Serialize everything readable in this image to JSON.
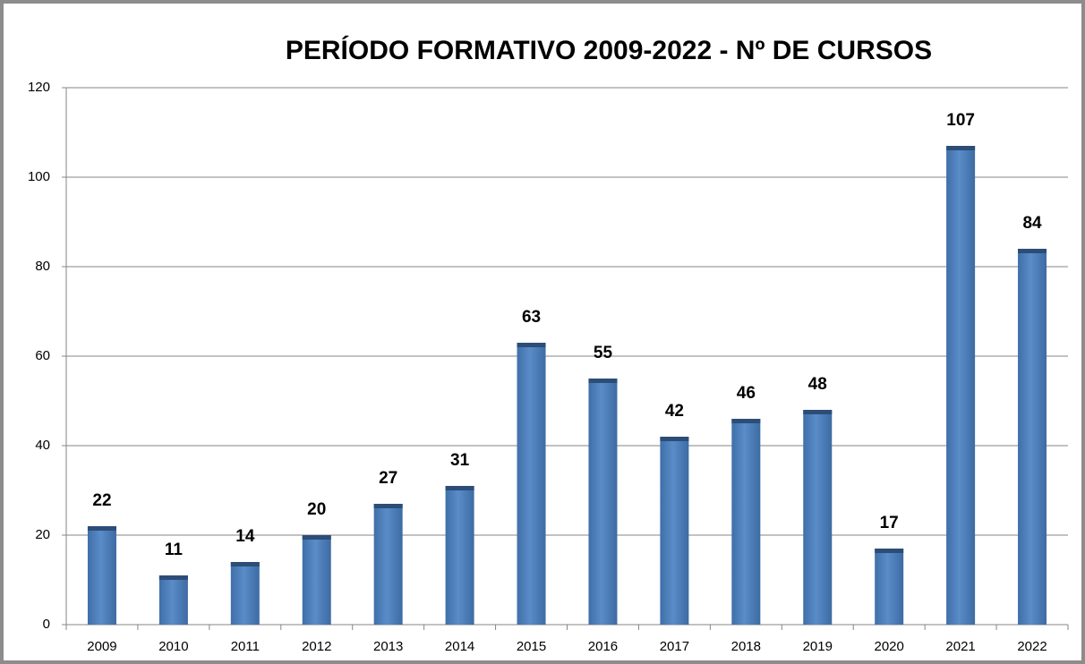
{
  "chart_data": {
    "type": "bar",
    "title": "PERÍODO FORMATIVO 2009-2022 - Nº DE CURSOS",
    "categories": [
      "2009",
      "2010",
      "2011",
      "2012",
      "2013",
      "2014",
      "2015",
      "2016",
      "2017",
      "2018",
      "2019",
      "2020",
      "2021",
      "2022"
    ],
    "values": [
      22,
      11,
      14,
      20,
      27,
      31,
      63,
      55,
      42,
      46,
      48,
      17,
      107,
      84
    ],
    "color": "#4f81bd",
    "ylim": [
      0,
      120
    ],
    "yticks": [
      0,
      20,
      40,
      60,
      80,
      100,
      120
    ],
    "grid": true
  }
}
